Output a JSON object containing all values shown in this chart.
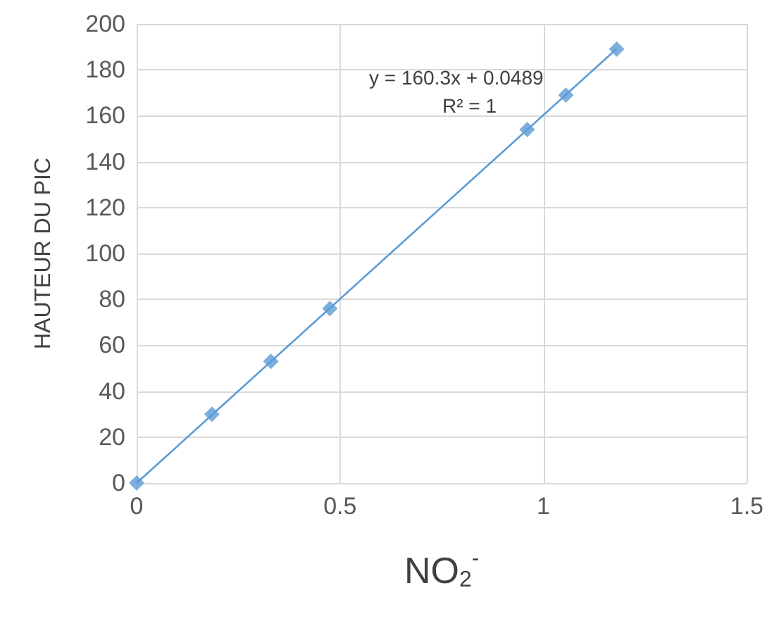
{
  "chart_data": {
    "type": "scatter",
    "xlabel": "NO$_{2}$$^{-}$",
    "ylabel": "HAUTEUR DU PIC",
    "x": [
      0,
      0.185,
      0.33,
      0.475,
      0.96,
      1.055,
      1.18
    ],
    "series": [
      {
        "color": "#5b9bd5",
        "values": [
          0,
          30,
          53,
          76,
          154,
          169,
          189
        ],
        "marker": "diamond"
      },
      {
        "type": "line",
        "color": "#5b9bd5",
        "x": [
          0,
          1.18
        ],
        "values": [
          0,
          189.2
        ],
        "marker": "none",
        "line_style": "solid"
      }
    ],
    "xlim": [
      0,
      1.5
    ],
    "xticks": [
      0,
      0.5,
      1,
      1.5
    ],
    "ylim": [
      0,
      200
    ],
    "yticks": [
      0,
      20,
      40,
      60,
      80,
      100,
      120,
      140,
      160,
      180,
      200
    ],
    "grid": true,
    "annotations": [
      "y = 160.3x + 0.0489",
      "R² = 1"
    ]
  }
}
